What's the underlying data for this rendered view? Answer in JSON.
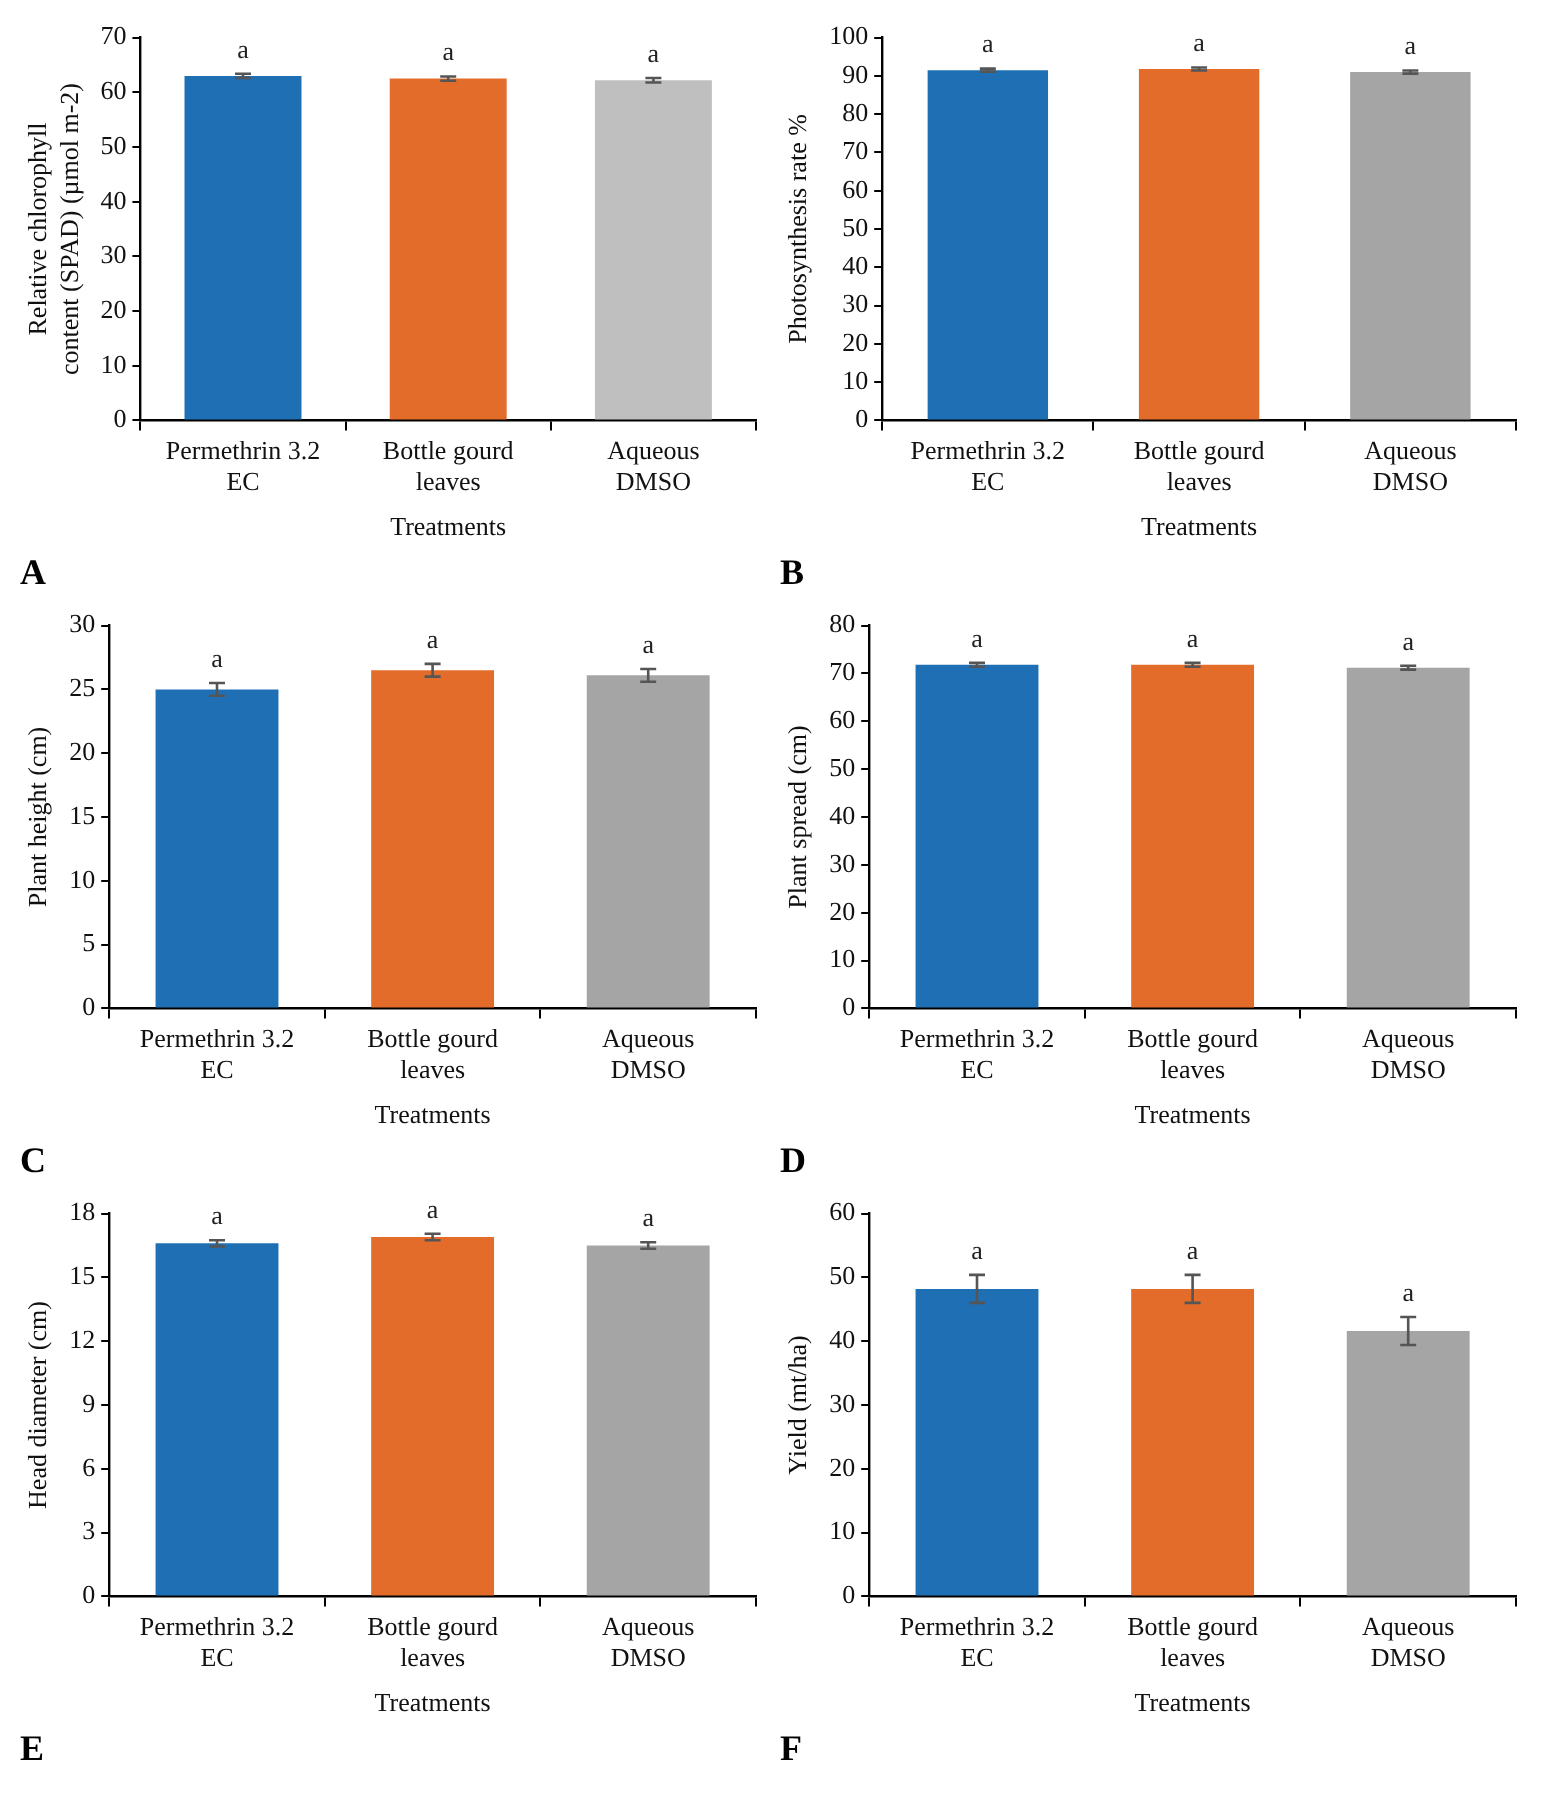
{
  "chart_data": [
    {
      "type": "bar",
      "ylabel": "Relative chlorophyll content (SPAD) (µmol m-2)",
      "xlabel": "Treatments",
      "categories": [
        "Permethrin 3.2 EC",
        "Bottle gourd leaves",
        "Aqueous DMSO"
      ],
      "values": [
        63,
        62.5,
        62.2
      ],
      "errors": [
        0.4,
        0.4,
        0.4
      ],
      "value_labels": [
        "a",
        "a",
        "a"
      ],
      "colors": [
        "#1f6fb5",
        "#e46c2a",
        "#bfbfbf"
      ],
      "ylim": [
        0,
        70
      ],
      "yticks": [
        0,
        10,
        20,
        30,
        40,
        50,
        60,
        70
      ],
      "grid": false,
      "annotations": [
        "A"
      ]
    },
    {
      "type": "bar",
      "ylabel": "Photosynthesis rate %",
      "xlabel": "Treatments",
      "categories": [
        "Permethrin 3.2 EC",
        "Bottle gourd leaves",
        "Aqueous DMSO"
      ],
      "values": [
        91.5,
        91.8,
        91
      ],
      "errors": [
        0.4,
        0.4,
        0.4
      ],
      "value_labels": [
        "a",
        "a",
        "a"
      ],
      "colors": [
        "#1f6fb5",
        "#e46c2a",
        "#a5a5a5"
      ],
      "ylim": [
        0,
        100
      ],
      "yticks": [
        0,
        10,
        20,
        30,
        40,
        50,
        60,
        70,
        80,
        90,
        100
      ],
      "grid": false,
      "annotations": [
        "B"
      ]
    },
    {
      "type": "bar",
      "ylabel": "Plant height (cm)",
      "xlabel": "Treatments",
      "categories": [
        "Permethrin 3.2 EC",
        "Bottle gourd leaves",
        "Aqueous DMSO"
      ],
      "values": [
        25,
        26.5,
        26.1
      ],
      "errors": [
        0.5,
        0.5,
        0.5
      ],
      "value_labels": [
        "a",
        "a",
        "a"
      ],
      "colors": [
        "#1f6fb5",
        "#e46c2a",
        "#a5a5a5"
      ],
      "ylim": [
        0,
        30
      ],
      "yticks": [
        0,
        5,
        10,
        15,
        20,
        25,
        30
      ],
      "grid": false,
      "annotations": [
        "C"
      ]
    },
    {
      "type": "bar",
      "ylabel": "Plant spread (cm)",
      "xlabel": "Treatments",
      "categories": [
        "Permethrin 3.2 EC",
        "Bottle gourd leaves",
        "Aqueous DMSO"
      ],
      "values": [
        71.8,
        71.8,
        71.2
      ],
      "errors": [
        0.4,
        0.4,
        0.4
      ],
      "value_labels": [
        "a",
        "a",
        "a"
      ],
      "colors": [
        "#1f6fb5",
        "#e46c2a",
        "#a5a5a5"
      ],
      "ylim": [
        0,
        80
      ],
      "yticks": [
        0,
        10,
        20,
        30,
        40,
        50,
        60,
        70,
        80
      ],
      "grid": false,
      "annotations": [
        "D"
      ]
    },
    {
      "type": "bar",
      "ylabel": "Head diameter (cm)",
      "xlabel": "Treatments",
      "categories": [
        "Permethrin 3.2 EC",
        "Bottle gourd leaves",
        "Aqueous DMSO"
      ],
      "values": [
        16.6,
        16.9,
        16.5
      ],
      "errors": [
        0.15,
        0.15,
        0.15
      ],
      "value_labels": [
        "a",
        "a",
        "a"
      ],
      "colors": [
        "#1f6fb5",
        "#e46c2a",
        "#a5a5a5"
      ],
      "ylim": [
        0,
        18
      ],
      "yticks": [
        0,
        3,
        6,
        9,
        12,
        15,
        18
      ],
      "grid": false,
      "annotations": [
        "E"
      ]
    },
    {
      "type": "bar",
      "ylabel": "Yield (mt/ha)",
      "xlabel": "Treatments",
      "categories": [
        "Permethrin 3.2 EC",
        "Bottle gourd leaves",
        "Aqueous DMSO"
      ],
      "values": [
        48.2,
        48.2,
        41.6
      ],
      "errors": [
        2.2,
        2.2,
        2.2
      ],
      "value_labels": [
        "a",
        "a",
        "a"
      ],
      "colors": [
        "#1f6fb5",
        "#e46c2a",
        "#a5a5a5"
      ],
      "ylim": [
        0,
        60
      ],
      "yticks": [
        0,
        10,
        20,
        30,
        40,
        50,
        60
      ],
      "grid": false,
      "annotations": [
        "F"
      ]
    }
  ]
}
